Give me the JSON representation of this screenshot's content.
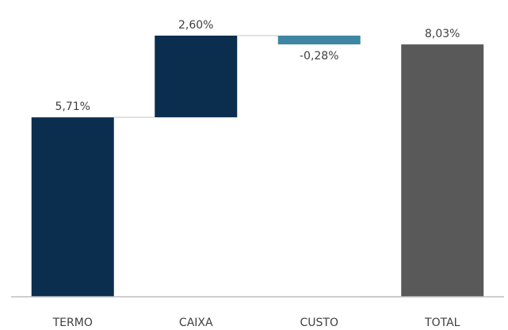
{
  "chart_data": {
    "type": "waterfall",
    "categories": [
      "TERMO",
      "CAIXA",
      "CUSTO",
      "TOTAL"
    ],
    "values": [
      5.71,
      2.6,
      -0.28,
      8.03
    ],
    "value_labels": [
      "5,71%",
      "2,60%",
      "-0,28%",
      "8,03%"
    ],
    "totals": [
      false,
      false,
      false,
      true
    ],
    "colors": [
      "#0b2e4f",
      "#0b2e4f",
      "#3f86a2",
      "#595959"
    ]
  }
}
